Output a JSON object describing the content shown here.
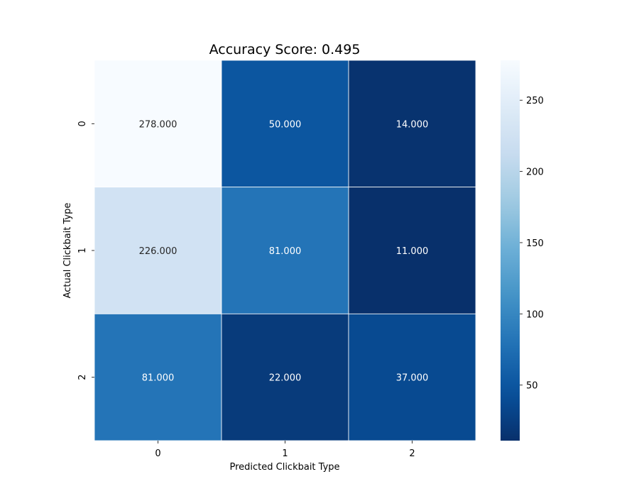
{
  "chart_data": {
    "type": "heatmap",
    "title": "Accuracy Score: 0.495",
    "xlabel": "Predicted Clickbait Type",
    "ylabel": "Actual Clickbait Type",
    "x_categories": [
      "0",
      "1",
      "2"
    ],
    "y_categories": [
      "0",
      "1",
      "2"
    ],
    "values": [
      [
        278,
        50,
        14
      ],
      [
        226,
        81,
        11
      ],
      [
        81,
        22,
        37
      ]
    ],
    "value_format_decimals": 3,
    "colormap": "Blues_r",
    "colorbar": {
      "range": [
        11,
        278
      ],
      "ticks": [
        50,
        100,
        150,
        200,
        250
      ]
    },
    "colors": {
      "low": "#08306b",
      "high": "#f7fbff",
      "cell_border": "#ffffff",
      "text_on_dark": "#ffffff",
      "text_on_light": "#262626"
    },
    "grid": false,
    "legend": "colorbar-right"
  }
}
